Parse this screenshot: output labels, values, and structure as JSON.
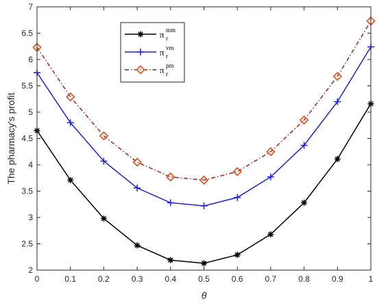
{
  "chart_data": {
    "type": "line",
    "title": "",
    "xlabel": "θ",
    "ylabel": "The pharmacy's profit",
    "xlim": [
      0,
      1
    ],
    "ylim": [
      2,
      7
    ],
    "xticks": [
      0,
      0.1,
      0.2,
      0.3,
      0.4,
      0.5,
      0.6,
      0.7,
      0.8,
      0.9,
      1
    ],
    "xtick_labels": [
      "0",
      "0.1",
      "0.2",
      "0.3",
      "0.4",
      "0.5",
      "0.6",
      "0.7",
      "0.8",
      "0.9",
      "1"
    ],
    "yticks": [
      2,
      2.5,
      3,
      3.5,
      4,
      4.5,
      5,
      5.5,
      6,
      6.5,
      7
    ],
    "ytick_labels": [
      "2",
      "2.5",
      "3",
      "3.5",
      "4",
      "4.5",
      "5",
      "5.5",
      "6",
      "6.5",
      "7"
    ],
    "grid": false,
    "legend_position": "top-left",
    "x": [
      0,
      0.1,
      0.2,
      0.3,
      0.4,
      0.5,
      0.6,
      0.7,
      0.8,
      0.9,
      1
    ],
    "series": [
      {
        "name": "π_r^mm",
        "legend_base": "π",
        "legend_sup": "mm",
        "legend_sub": "r",
        "color": "#000000",
        "marker": "asterisk",
        "line_style": "solid",
        "values": [
          4.65,
          3.71,
          2.98,
          2.47,
          2.19,
          2.13,
          2.29,
          2.68,
          3.28,
          4.11,
          5.16
        ]
      },
      {
        "name": "π_r^vm",
        "legend_base": "π",
        "legend_sup": "vm",
        "legend_sub": "r",
        "color": "#1f1fd9",
        "marker": "plus",
        "line_style": "solid",
        "values": [
          5.75,
          4.8,
          4.07,
          3.56,
          3.28,
          3.22,
          3.38,
          3.77,
          4.37,
          5.2,
          6.24
        ]
      },
      {
        "name": "π_r^pm",
        "legend_base": "π",
        "legend_sup": "pm",
        "legend_sub": "r",
        "color": "#a52020",
        "marker": "diamond",
        "marker_color": "#e05a2a",
        "line_style": "dashdot",
        "values": [
          6.23,
          5.29,
          4.55,
          4.05,
          3.77,
          3.71,
          3.87,
          4.25,
          4.85,
          5.68,
          6.73
        ]
      }
    ]
  }
}
